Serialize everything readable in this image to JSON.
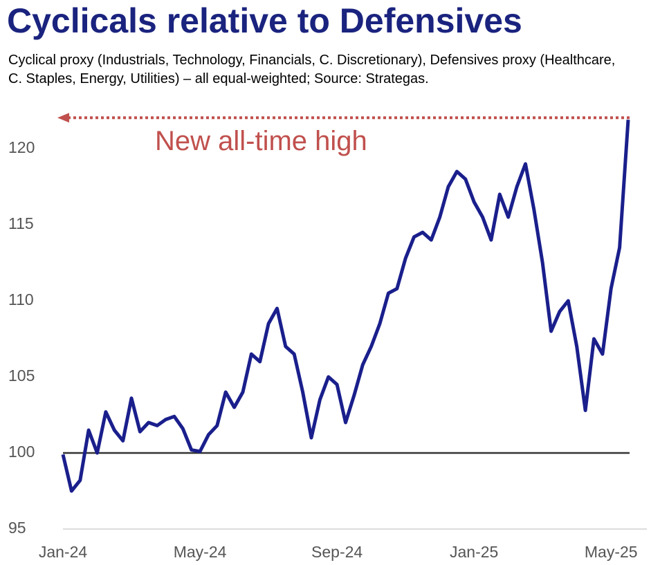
{
  "chart_data": {
    "type": "line",
    "title": "Cyclicals relative to Defensives",
    "subtitle": "Cyclical proxy (Industrials, Technology, Financials, C. Discretionary), Defensives proxy (Healthcare, C. Staples, Energy, Utilities) – all equal-weighted; Source: Strategas.",
    "annotation": "New all-time high",
    "categories": [
      "Jan-24",
      null,
      null,
      null,
      null,
      null,
      null,
      null,
      null,
      null,
      null,
      null,
      null,
      null,
      null,
      null,
      "May-24",
      null,
      null,
      null,
      null,
      null,
      null,
      null,
      null,
      null,
      null,
      null,
      null,
      null,
      null,
      null,
      "Sep-24",
      null,
      null,
      null,
      null,
      null,
      null,
      null,
      null,
      null,
      null,
      null,
      null,
      null,
      null,
      null,
      "Jan-25",
      null,
      null,
      null,
      null,
      null,
      null,
      null,
      null,
      null,
      null,
      null,
      null,
      null,
      null,
      null,
      "May-25",
      null,
      null
    ],
    "series": [
      {
        "name": "Cyclicals relative to Defensives",
        "color": "#1a1f8c",
        "values": [
          99.9,
          97.5,
          98.2,
          101.5,
          100.0,
          102.7,
          101.5,
          100.8,
          103.6,
          101.4,
          102.0,
          101.8,
          102.2,
          102.4,
          101.6,
          100.2,
          100.1,
          101.2,
          101.8,
          104.0,
          103.0,
          104.0,
          106.5,
          106.0,
          108.5,
          109.5,
          107.0,
          106.5,
          104.0,
          101.0,
          103.5,
          105.0,
          104.5,
          102.0,
          103.8,
          105.8,
          107.0,
          108.5,
          110.5,
          110.8,
          112.8,
          114.2,
          114.5,
          114.0,
          115.5,
          117.5,
          118.5,
          118.0,
          116.5,
          115.5,
          114.0,
          117.0,
          115.5,
          117.5,
          119.0,
          116.0,
          112.5,
          108.0,
          109.3,
          110.0,
          107.0,
          102.8,
          107.5,
          106.5,
          110.8,
          113.5,
          121.9
        ]
      }
    ],
    "reference_line": 100,
    "ylim": [
      95,
      122.5
    ],
    "yticks": [
      95,
      100,
      105,
      110,
      115,
      120
    ],
    "annotation_color": "#c0504d",
    "grid": false
  }
}
